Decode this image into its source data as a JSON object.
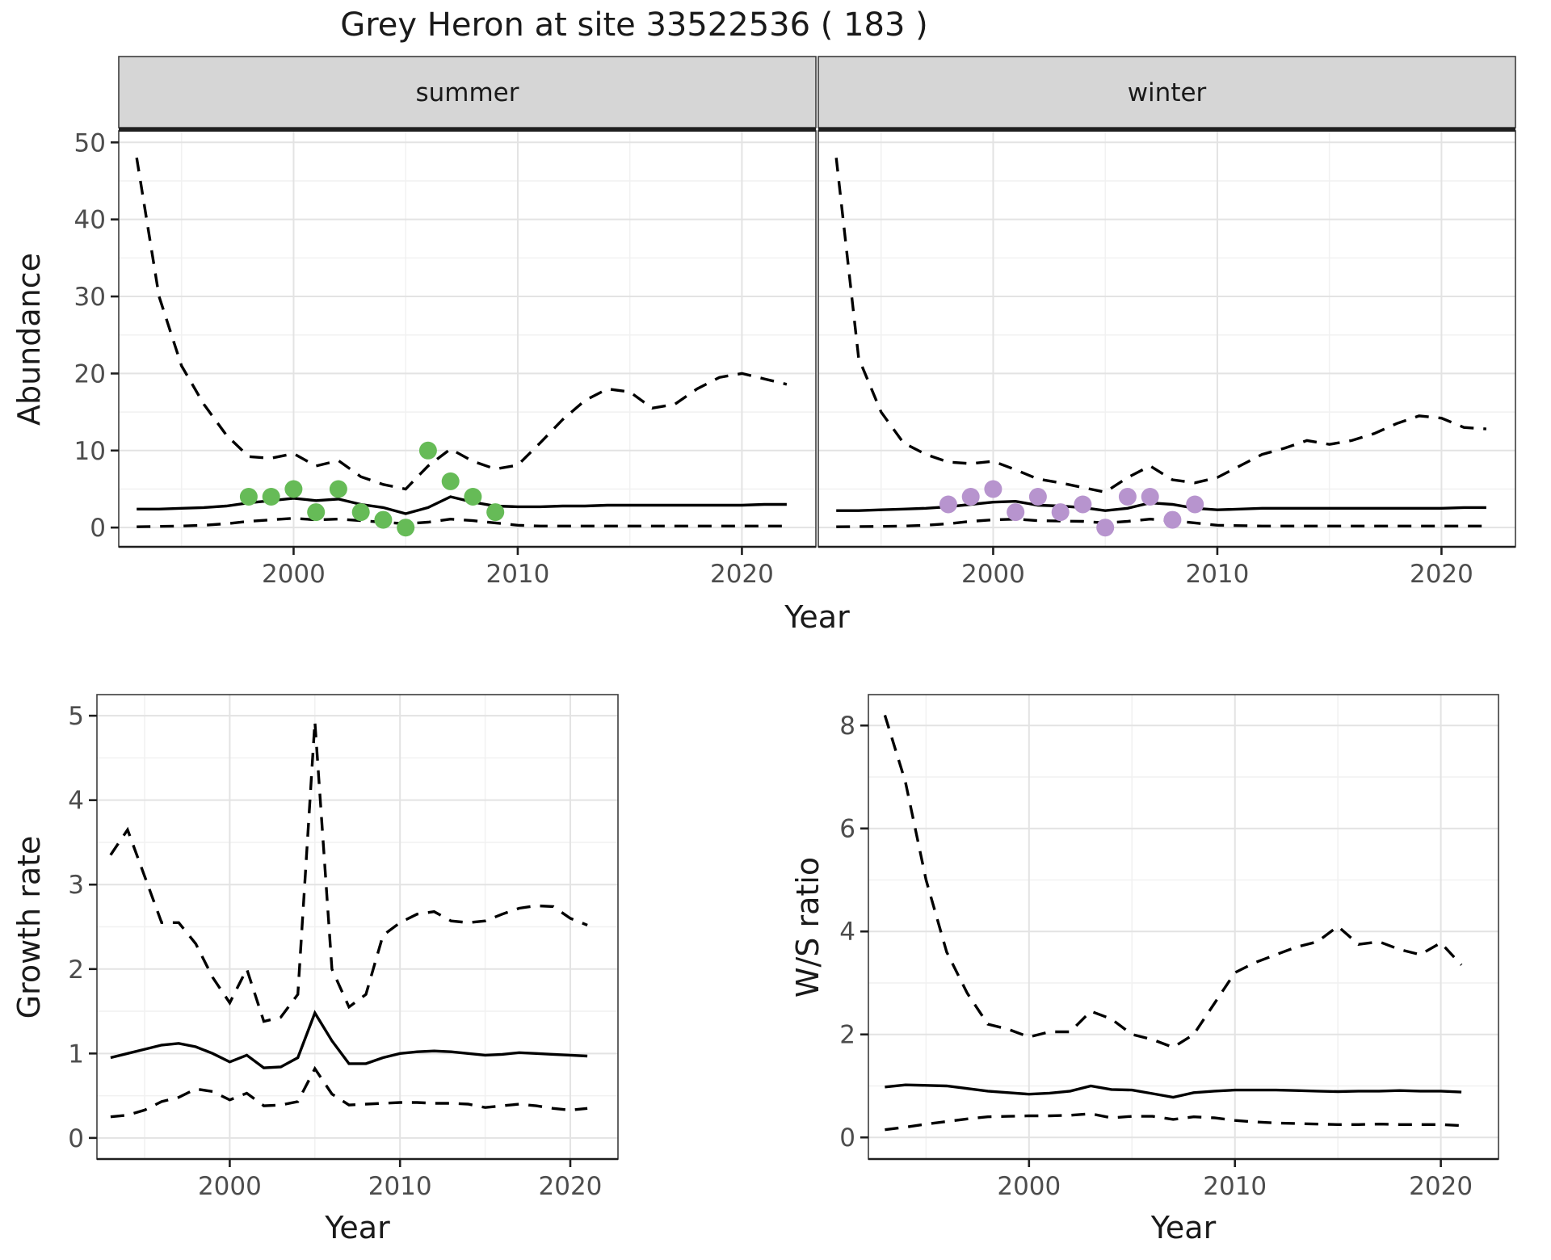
{
  "title": "Grey Heron at site 33522536 ( 183 )",
  "axis_labels": {
    "abundance": "Abundance",
    "year": "Year",
    "growth": "Growth rate",
    "ws": "W/S ratio"
  },
  "colors": {
    "line": "#000000",
    "summer_point": "#66bb57",
    "winter_point": "#b794ce",
    "grid_major": "#e3e3e3",
    "grid_minor": "#f1f1f1",
    "strip_bg": "#d6d6d6",
    "strip_text": "#1a1a1a",
    "axis_text": "#4d4d4d",
    "axis_line": "#1f1f1f",
    "border": "#3d3d3d",
    "title_text": "#1a1a1a"
  },
  "chart_data": [
    {
      "key": "summer",
      "type": "line",
      "strip_label": "summer",
      "ylabel": "Abundance",
      "xlabel": "Year",
      "x_domain": [
        1992.2,
        2023.3
      ],
      "y_domain": [
        -2.5,
        51.5
      ],
      "x_ticks": [
        2000,
        2010,
        2020
      ],
      "x_minor": [
        1995,
        2005,
        2015
      ],
      "y_ticks": [
        0,
        10,
        20,
        30,
        40,
        50
      ],
      "y_minor": [
        5,
        15,
        25,
        35,
        45
      ],
      "show_y_labels": true,
      "years": [
        1993,
        1994,
        1995,
        1996,
        1997,
        1998,
        1999,
        2000,
        2001,
        2002,
        2003,
        2004,
        2005,
        2006,
        2007,
        2008,
        2009,
        2010,
        2011,
        2012,
        2013,
        2014,
        2015,
        2016,
        2017,
        2018,
        2019,
        2020,
        2021,
        2022
      ],
      "series": [
        {
          "name": "fit",
          "style": "solid",
          "values": [
            2.4,
            2.4,
            2.5,
            2.6,
            2.8,
            3.2,
            3.5,
            3.8,
            3.5,
            3.7,
            3.0,
            2.6,
            1.8,
            2.6,
            4.0,
            3.3,
            2.8,
            2.7,
            2.7,
            2.8,
            2.8,
            2.9,
            2.9,
            2.9,
            2.9,
            2.9,
            2.9,
            2.9,
            3.0,
            3.0
          ]
        },
        {
          "name": "upper_ci",
          "style": "dashed",
          "values": [
            48,
            30,
            21,
            16,
            12,
            9.2,
            9.0,
            9.6,
            8.0,
            8.7,
            6.6,
            5.6,
            5.0,
            8.0,
            10.2,
            8.6,
            7.6,
            8.1,
            11,
            14,
            16.5,
            18,
            17.6,
            15.5,
            16,
            18,
            19.5,
            20,
            19.3,
            18.6
          ]
        },
        {
          "name": "lower_ci",
          "style": "dashed",
          "values": [
            0.1,
            0.15,
            0.2,
            0.3,
            0.5,
            0.8,
            1.0,
            1.2,
            1.0,
            1.1,
            0.9,
            0.7,
            0.5,
            0.7,
            1.1,
            0.9,
            0.6,
            0.3,
            0.2,
            0.2,
            0.2,
            0.2,
            0.2,
            0.2,
            0.2,
            0.2,
            0.2,
            0.2,
            0.2,
            0.2
          ]
        }
      ],
      "points": {
        "name": "observed-counts-summer",
        "color": "#66bb57",
        "years": [
          1998,
          1999,
          2000,
          2001,
          2002,
          2003,
          2004,
          2005,
          2006,
          2007,
          2008,
          2009
        ],
        "values": [
          4,
          4,
          5,
          2,
          5,
          2,
          1,
          0,
          10,
          6,
          4,
          2
        ]
      }
    },
    {
      "key": "winter",
      "type": "line",
      "strip_label": "winter",
      "ylabel": "Abundance",
      "xlabel": "Year",
      "x_domain": [
        1992.2,
        2023.3
      ],
      "y_domain": [
        -2.5,
        51.5
      ],
      "x_ticks": [
        2000,
        2010,
        2020
      ],
      "x_minor": [
        1995,
        2005,
        2015
      ],
      "y_ticks": [
        0,
        10,
        20,
        30,
        40,
        50
      ],
      "y_minor": [
        5,
        15,
        25,
        35,
        45
      ],
      "show_y_labels": false,
      "years": [
        1993,
        1994,
        1995,
        1996,
        1997,
        1998,
        1999,
        2000,
        2001,
        2002,
        2003,
        2004,
        2005,
        2006,
        2007,
        2008,
        2009,
        2010,
        2011,
        2012,
        2013,
        2014,
        2015,
        2016,
        2017,
        2018,
        2019,
        2020,
        2021,
        2022
      ],
      "series": [
        {
          "name": "fit",
          "style": "solid",
          "values": [
            2.2,
            2.2,
            2.3,
            2.4,
            2.5,
            2.7,
            3.0,
            3.3,
            3.4,
            2.9,
            2.8,
            2.6,
            2.2,
            2.5,
            3.2,
            3.0,
            2.5,
            2.3,
            2.4,
            2.5,
            2.5,
            2.5,
            2.5,
            2.5,
            2.5,
            2.5,
            2.5,
            2.5,
            2.6,
            2.6
          ]
        },
        {
          "name": "upper_ci",
          "style": "dashed",
          "values": [
            48,
            22,
            15,
            11,
            9.5,
            8.5,
            8.3,
            8.6,
            7.5,
            6.3,
            5.8,
            5.2,
            4.6,
            6.5,
            8.0,
            6.2,
            5.8,
            6.5,
            8.0,
            9.5,
            10.3,
            11.3,
            10.8,
            11.3,
            12.2,
            13.5,
            14.5,
            14.2,
            13.0,
            12.8
          ]
        },
        {
          "name": "lower_ci",
          "style": "dashed",
          "values": [
            0.1,
            0.12,
            0.15,
            0.2,
            0.3,
            0.5,
            0.8,
            1.0,
            1.1,
            0.9,
            0.85,
            0.8,
            0.6,
            0.8,
            1.1,
            0.9,
            0.6,
            0.3,
            0.25,
            0.2,
            0.2,
            0.2,
            0.2,
            0.2,
            0.2,
            0.2,
            0.2,
            0.2,
            0.2,
            0.2
          ]
        }
      ],
      "points": {
        "name": "observed-counts-winter",
        "color": "#b794ce",
        "years": [
          1998,
          1999,
          2000,
          2001,
          2002,
          2003,
          2004,
          2005,
          2006,
          2007,
          2008,
          2009
        ],
        "values": [
          3,
          4,
          5,
          2,
          4,
          2,
          3,
          0,
          4,
          4,
          1,
          3
        ]
      }
    },
    {
      "key": "growth",
      "type": "line",
      "strip_label": null,
      "ylabel": "Growth rate",
      "xlabel": "Year",
      "x_domain": [
        1992.2,
        2022.8
      ],
      "y_domain": [
        -0.25,
        5.25
      ],
      "x_ticks": [
        2000,
        2010,
        2020
      ],
      "x_minor": [
        1995,
        2005,
        2015
      ],
      "y_ticks": [
        0,
        1,
        2,
        3,
        4,
        5
      ],
      "y_minor": [
        0.5,
        1.5,
        2.5,
        3.5,
        4.5
      ],
      "show_y_labels": true,
      "years": [
        1993,
        1994,
        1995,
        1996,
        1997,
        1998,
        1999,
        2000,
        2001,
        2002,
        2003,
        2004,
        2005,
        2006,
        2007,
        2008,
        2009,
        2010,
        2011,
        2012,
        2013,
        2014,
        2015,
        2016,
        2017,
        2018,
        2019,
        2020,
        2021
      ],
      "series": [
        {
          "name": "fit",
          "style": "solid",
          "values": [
            0.95,
            1.0,
            1.05,
            1.1,
            1.12,
            1.08,
            1.0,
            0.9,
            0.98,
            0.83,
            0.84,
            0.95,
            1.48,
            1.15,
            0.88,
            0.88,
            0.95,
            1.0,
            1.02,
            1.03,
            1.02,
            1.0,
            0.98,
            0.99,
            1.01,
            1.0,
            0.99,
            0.98,
            0.97
          ]
        },
        {
          "name": "upper_ci",
          "style": "dashed",
          "values": [
            3.35,
            3.65,
            3.1,
            2.55,
            2.55,
            2.3,
            1.9,
            1.6,
            2.0,
            1.38,
            1.43,
            1.7,
            4.93,
            2.0,
            1.55,
            1.7,
            2.4,
            2.55,
            2.65,
            2.68,
            2.57,
            2.55,
            2.57,
            2.65,
            2.72,
            2.75,
            2.74,
            2.6,
            2.52
          ]
        },
        {
          "name": "lower_ci",
          "style": "dashed",
          "values": [
            0.25,
            0.27,
            0.33,
            0.43,
            0.48,
            0.58,
            0.55,
            0.45,
            0.53,
            0.38,
            0.39,
            0.43,
            0.82,
            0.52,
            0.39,
            0.4,
            0.41,
            0.42,
            0.42,
            0.41,
            0.41,
            0.4,
            0.36,
            0.38,
            0.4,
            0.38,
            0.35,
            0.33,
            0.35
          ]
        }
      ],
      "points": null
    },
    {
      "key": "ws",
      "type": "line",
      "strip_label": null,
      "ylabel": "W/S ratio",
      "xlabel": "Year",
      "x_domain": [
        1992.2,
        2022.8
      ],
      "y_domain": [
        -0.42,
        8.6
      ],
      "x_ticks": [
        2000,
        2010,
        2020
      ],
      "x_minor": [
        1995,
        2005,
        2015
      ],
      "y_ticks": [
        0,
        2,
        4,
        6,
        8
      ],
      "y_minor": [
        1,
        3,
        5,
        7
      ],
      "show_y_labels": true,
      "years": [
        1993,
        1994,
        1995,
        1996,
        1997,
        1998,
        1999,
        2000,
        2001,
        2002,
        2003,
        2004,
        2005,
        2006,
        2007,
        2008,
        2009,
        2010,
        2011,
        2012,
        2013,
        2014,
        2015,
        2016,
        2017,
        2018,
        2019,
        2020,
        2021
      ],
      "series": [
        {
          "name": "fit",
          "style": "solid",
          "values": [
            0.98,
            1.02,
            1.01,
            1.0,
            0.95,
            0.9,
            0.87,
            0.84,
            0.86,
            0.9,
            1.0,
            0.93,
            0.92,
            0.85,
            0.78,
            0.87,
            0.9,
            0.92,
            0.92,
            0.92,
            0.91,
            0.9,
            0.89,
            0.9,
            0.9,
            0.91,
            0.9,
            0.9,
            0.88
          ]
        },
        {
          "name": "upper_ci",
          "style": "dashed",
          "values": [
            8.2,
            6.9,
            5.0,
            3.6,
            2.8,
            2.2,
            2.1,
            1.95,
            2.05,
            2.05,
            2.45,
            2.3,
            2.0,
            1.9,
            1.75,
            2.0,
            2.6,
            3.2,
            3.4,
            3.55,
            3.7,
            3.8,
            4.1,
            3.75,
            3.8,
            3.65,
            3.55,
            3.78,
            3.35
          ]
        },
        {
          "name": "lower_ci",
          "style": "dashed",
          "values": [
            0.15,
            0.2,
            0.26,
            0.31,
            0.36,
            0.4,
            0.41,
            0.42,
            0.42,
            0.43,
            0.46,
            0.38,
            0.41,
            0.41,
            0.35,
            0.4,
            0.38,
            0.33,
            0.3,
            0.28,
            0.27,
            0.26,
            0.25,
            0.25,
            0.26,
            0.25,
            0.25,
            0.25,
            0.23
          ]
        }
      ],
      "points": null
    }
  ]
}
